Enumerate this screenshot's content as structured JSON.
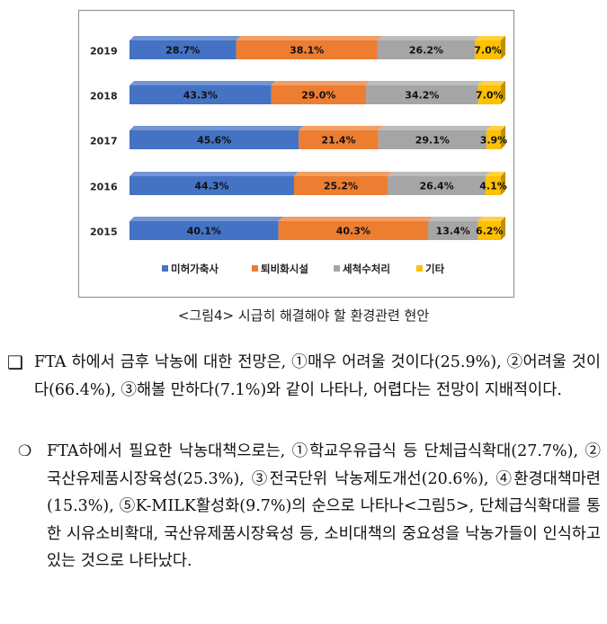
{
  "chart_data": {
    "type": "bar",
    "stacked": true,
    "orientation": "horizontal",
    "categories": [
      "2019",
      "2018",
      "2017",
      "2016",
      "2015"
    ],
    "series": [
      {
        "name": "미허가축사",
        "color": "#4472c4",
        "values": [
          28.7,
          43.3,
          45.6,
          44.3,
          40.1
        ],
        "labels": [
          "28.7%",
          "43.3%",
          "45.6%",
          "44.3%",
          "40.1%"
        ]
      },
      {
        "name": "퇴비화시설",
        "color": "#ed7d31",
        "values": [
          38.1,
          29.0,
          21.4,
          25.2,
          40.3
        ],
        "labels": [
          "38.1%",
          "29.0%",
          "21.4%",
          "25.2%",
          "40.3%"
        ]
      },
      {
        "name": "세척수처리",
        "color": "#a5a5a5",
        "values": [
          26.2,
          34.2,
          29.1,
          26.4,
          13.4
        ],
        "labels": [
          "26.2%",
          "34.2%",
          "29.1%",
          "26.4%",
          "13.4%"
        ]
      },
      {
        "name": "기타",
        "color": "#ffc000",
        "values": [
          7.0,
          7.0,
          3.9,
          4.1,
          6.2
        ],
        "labels": [
          "7.0%",
          "7.0%",
          "3.9%",
          "4.1%",
          "6.2%"
        ]
      }
    ],
    "legend": "bottom"
  },
  "caption": "<그림4> 시급히 해결해야 할 환경관련 현안",
  "paragraph1": {
    "bullet": "❑",
    "text": "FTA 하에서 금후 낙농에 대한 전망은, ①매우 어려울 것이다(25.9%), ②어려울 것이다(66.4%), ③해볼 만하다(7.1%)와 같이 나타나, 어렵다는 전망이 지배적이다."
  },
  "paragraph2": {
    "bullet": "❍",
    "text": "FTA하에서 필요한 낙농대책으로는, ①학교우유급식 등 단체급식확대(27.7%), ②국산유제품시장육성(25.3%), ③전국단위 낙농제도개선(20.6%), ④환경대책마련(15.3%), ⑤K-MILK활성화(9.7%)의 순으로 나타나<그림5>, 단체급식확대를 통한 시유소비확대, 국산유제품시장육성 등, 소비대책의 중요성을 낙농가들이 인식하고 있는 것으로 나타났다."
  }
}
